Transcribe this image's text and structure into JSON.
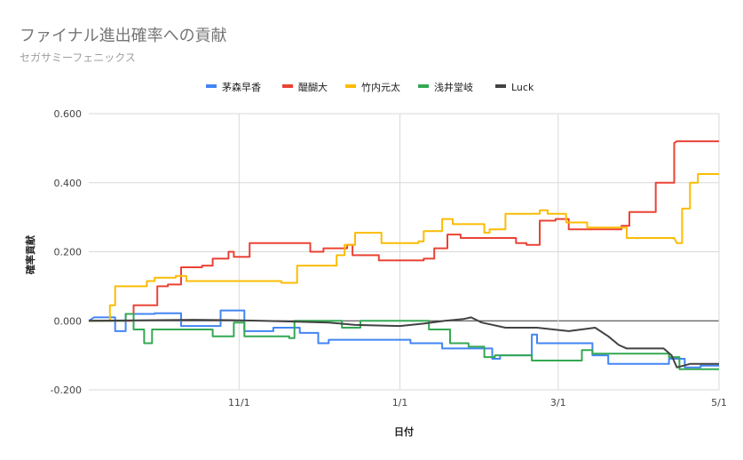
{
  "chart_data": {
    "type": "line",
    "title": "ファイナル進出確率への貢献",
    "subtitle": "セガサミーフェニックス",
    "xlabel": "日付",
    "ylabel": "確率貢献",
    "ylim": [
      -0.2,
      0.6
    ],
    "yticks": [
      "-0.200",
      "0.000",
      "0.200",
      "0.400",
      "0.600"
    ],
    "xlim": [
      "2023-09-05",
      "2024-05-01"
    ],
    "xticks": [
      {
        "date": "2023-11-01",
        "label": "11/1"
      },
      {
        "date": "2024-01-01",
        "label": "1/1"
      },
      {
        "date": "2024-03-01",
        "label": "3/1"
      },
      {
        "date": "2024-05-01",
        "label": "5/1"
      }
    ],
    "grid": true,
    "legend": "top",
    "series": [
      {
        "name": "茅森早香",
        "color": "#4285f4",
        "points": [
          [
            "2023-09-05",
            0.0
          ],
          [
            "2023-09-07",
            0.01
          ],
          [
            "2023-09-15",
            0.01
          ],
          [
            "2023-09-15",
            -0.03
          ],
          [
            "2023-09-19",
            -0.03
          ],
          [
            "2023-09-19",
            0.02
          ],
          [
            "2023-09-30",
            0.02
          ],
          [
            "2023-09-30",
            0.022
          ],
          [
            "2023-10-10",
            0.022
          ],
          [
            "2023-10-10",
            -0.015
          ],
          [
            "2023-10-25",
            -0.015
          ],
          [
            "2023-10-25",
            0.03
          ],
          [
            "2023-11-03",
            0.03
          ],
          [
            "2023-11-03",
            -0.03
          ],
          [
            "2023-11-14",
            -0.03
          ],
          [
            "2023-11-14",
            -0.02
          ],
          [
            "2023-11-24",
            -0.02
          ],
          [
            "2023-11-24",
            -0.035
          ],
          [
            "2023-12-01",
            -0.035
          ],
          [
            "2023-12-01",
            -0.065
          ],
          [
            "2023-12-05",
            -0.065
          ],
          [
            "2023-12-05",
            -0.055
          ],
          [
            "2024-01-05",
            -0.055
          ],
          [
            "2024-01-05",
            -0.065
          ],
          [
            "2024-01-17",
            -0.065
          ],
          [
            "2024-01-17",
            -0.08
          ],
          [
            "2024-02-05",
            -0.08
          ],
          [
            "2024-02-05",
            -0.11
          ],
          [
            "2024-02-08",
            -0.11
          ],
          [
            "2024-02-08",
            -0.1
          ],
          [
            "2024-02-20",
            -0.1
          ],
          [
            "2024-02-20",
            -0.04
          ],
          [
            "2024-02-22",
            -0.04
          ],
          [
            "2024-02-22",
            -0.065
          ],
          [
            "2024-03-14",
            -0.065
          ],
          [
            "2024-03-14",
            -0.1
          ],
          [
            "2024-03-20",
            -0.1
          ],
          [
            "2024-03-20",
            -0.125
          ],
          [
            "2024-04-12",
            -0.125
          ],
          [
            "2024-04-12",
            -0.11
          ],
          [
            "2024-04-18",
            -0.11
          ],
          [
            "2024-04-18",
            -0.135
          ],
          [
            "2024-04-24",
            -0.135
          ],
          [
            "2024-04-24",
            -0.13
          ],
          [
            "2024-05-01",
            -0.13
          ]
        ]
      },
      {
        "name": "醍醐大",
        "color": "#ea4335",
        "points": [
          [
            "2023-09-05",
            0.0
          ],
          [
            "2023-09-22",
            0.0
          ],
          [
            "2023-09-22",
            0.045
          ],
          [
            "2023-10-01",
            0.045
          ],
          [
            "2023-10-01",
            0.1
          ],
          [
            "2023-10-05",
            0.1
          ],
          [
            "2023-10-05",
            0.105
          ],
          [
            "2023-10-10",
            0.105
          ],
          [
            "2023-10-10",
            0.155
          ],
          [
            "2023-10-18",
            0.155
          ],
          [
            "2023-10-18",
            0.16
          ],
          [
            "2023-10-22",
            0.16
          ],
          [
            "2023-10-22",
            0.18
          ],
          [
            "2023-10-28",
            0.18
          ],
          [
            "2023-10-28",
            0.2
          ],
          [
            "2023-10-30",
            0.2
          ],
          [
            "2023-10-30",
            0.185
          ],
          [
            "2023-11-05",
            0.185
          ],
          [
            "2023-11-05",
            0.225
          ],
          [
            "2023-11-28",
            0.225
          ],
          [
            "2023-11-28",
            0.2
          ],
          [
            "2023-12-03",
            0.2
          ],
          [
            "2023-12-03",
            0.21
          ],
          [
            "2023-12-12",
            0.21
          ],
          [
            "2023-12-12",
            0.22
          ],
          [
            "2023-12-14",
            0.22
          ],
          [
            "2023-12-14",
            0.19
          ],
          [
            "2023-12-24",
            0.19
          ],
          [
            "2023-12-24",
            0.175
          ],
          [
            "2024-01-10",
            0.175
          ],
          [
            "2024-01-10",
            0.18
          ],
          [
            "2024-01-14",
            0.18
          ],
          [
            "2024-01-14",
            0.21
          ],
          [
            "2024-01-19",
            0.21
          ],
          [
            "2024-01-19",
            0.25
          ],
          [
            "2024-01-24",
            0.25
          ],
          [
            "2024-01-24",
            0.24
          ],
          [
            "2024-02-14",
            0.24
          ],
          [
            "2024-02-14",
            0.225
          ],
          [
            "2024-02-18",
            0.225
          ],
          [
            "2024-02-18",
            0.22
          ],
          [
            "2024-02-23",
            0.22
          ],
          [
            "2024-02-23",
            0.29
          ],
          [
            "2024-02-29",
            0.29
          ],
          [
            "2024-02-29",
            0.295
          ],
          [
            "2024-03-05",
            0.295
          ],
          [
            "2024-03-05",
            0.265
          ],
          [
            "2024-03-25",
            0.265
          ],
          [
            "2024-03-25",
            0.275
          ],
          [
            "2024-03-28",
            0.275
          ],
          [
            "2024-03-28",
            0.315
          ],
          [
            "2024-04-07",
            0.315
          ],
          [
            "2024-04-07",
            0.4
          ],
          [
            "2024-04-14",
            0.4
          ],
          [
            "2024-04-14",
            0.515
          ],
          [
            "2024-04-15",
            0.52
          ],
          [
            "2024-05-01",
            0.52
          ]
        ]
      },
      {
        "name": "竹内元太",
        "color": "#fbbc04",
        "points": [
          [
            "2023-09-05",
            0.0
          ],
          [
            "2023-09-13",
            0.0
          ],
          [
            "2023-09-13",
            0.045
          ],
          [
            "2023-09-15",
            0.045
          ],
          [
            "2023-09-15",
            0.1
          ],
          [
            "2023-09-27",
            0.1
          ],
          [
            "2023-09-27",
            0.115
          ],
          [
            "2023-09-30",
            0.115
          ],
          [
            "2023-09-30",
            0.125
          ],
          [
            "2023-10-08",
            0.125
          ],
          [
            "2023-10-08",
            0.13
          ],
          [
            "2023-10-12",
            0.13
          ],
          [
            "2023-10-12",
            0.115
          ],
          [
            "2023-11-17",
            0.115
          ],
          [
            "2023-11-17",
            0.11
          ],
          [
            "2023-11-23",
            0.11
          ],
          [
            "2023-11-23",
            0.16
          ],
          [
            "2023-12-08",
            0.16
          ],
          [
            "2023-12-08",
            0.19
          ],
          [
            "2023-12-11",
            0.19
          ],
          [
            "2023-12-11",
            0.22
          ],
          [
            "2023-12-15",
            0.22
          ],
          [
            "2023-12-15",
            0.255
          ],
          [
            "2023-12-25",
            0.255
          ],
          [
            "2023-12-25",
            0.225
          ],
          [
            "2024-01-08",
            0.225
          ],
          [
            "2024-01-08",
            0.23
          ],
          [
            "2024-01-10",
            0.23
          ],
          [
            "2024-01-10",
            0.26
          ],
          [
            "2024-01-17",
            0.26
          ],
          [
            "2024-01-17",
            0.295
          ],
          [
            "2024-01-21",
            0.295
          ],
          [
            "2024-01-21",
            0.28
          ],
          [
            "2024-02-02",
            0.28
          ],
          [
            "2024-02-02",
            0.255
          ],
          [
            "2024-02-04",
            0.255
          ],
          [
            "2024-02-04",
            0.265
          ],
          [
            "2024-02-10",
            0.265
          ],
          [
            "2024-02-10",
            0.31
          ],
          [
            "2024-02-23",
            0.31
          ],
          [
            "2024-02-23",
            0.32
          ],
          [
            "2024-02-26",
            0.32
          ],
          [
            "2024-02-26",
            0.31
          ],
          [
            "2024-03-04",
            0.31
          ],
          [
            "2024-03-04",
            0.285
          ],
          [
            "2024-03-12",
            0.285
          ],
          [
            "2024-03-12",
            0.27
          ],
          [
            "2024-03-27",
            0.27
          ],
          [
            "2024-03-27",
            0.24
          ],
          [
            "2024-04-14",
            0.24
          ],
          [
            "2024-04-15",
            0.225
          ],
          [
            "2024-04-17",
            0.225
          ],
          [
            "2024-04-17",
            0.325
          ],
          [
            "2024-04-20",
            0.325
          ],
          [
            "2024-04-20",
            0.4
          ],
          [
            "2024-04-23",
            0.4
          ],
          [
            "2024-04-23",
            0.425
          ],
          [
            "2024-05-01",
            0.425
          ]
        ]
      },
      {
        "name": "浅井堂岐",
        "color": "#34a853",
        "points": [
          [
            "2023-09-05",
            0.0
          ],
          [
            "2023-09-19",
            0.0
          ],
          [
            "2023-09-19",
            0.02
          ],
          [
            "2023-09-22",
            0.02
          ],
          [
            "2023-09-22",
            -0.025
          ],
          [
            "2023-09-26",
            -0.025
          ],
          [
            "2023-09-26",
            -0.065
          ],
          [
            "2023-09-29",
            -0.065
          ],
          [
            "2023-09-29",
            -0.025
          ],
          [
            "2023-10-22",
            -0.025
          ],
          [
            "2023-10-22",
            -0.045
          ],
          [
            "2023-10-30",
            -0.045
          ],
          [
            "2023-10-30",
            -0.005
          ],
          [
            "2023-11-03",
            -0.005
          ],
          [
            "2023-11-03",
            -0.045
          ],
          [
            "2023-11-20",
            -0.045
          ],
          [
            "2023-11-20",
            -0.05
          ],
          [
            "2023-11-22",
            -0.05
          ],
          [
            "2023-11-22",
            0.0
          ],
          [
            "2023-12-10",
            0.0
          ],
          [
            "2023-12-10",
            -0.02
          ],
          [
            "2023-12-17",
            -0.02
          ],
          [
            "2023-12-17",
            0.0
          ],
          [
            "2024-01-12",
            0.0
          ],
          [
            "2024-01-12",
            -0.025
          ],
          [
            "2024-01-20",
            -0.025
          ],
          [
            "2024-01-20",
            -0.065
          ],
          [
            "2024-01-27",
            -0.065
          ],
          [
            "2024-01-27",
            -0.075
          ],
          [
            "2024-02-02",
            -0.075
          ],
          [
            "2024-02-02",
            -0.105
          ],
          [
            "2024-02-06",
            -0.105
          ],
          [
            "2024-02-06",
            -0.1
          ],
          [
            "2024-02-20",
            -0.1
          ],
          [
            "2024-02-20",
            -0.115
          ],
          [
            "2024-03-10",
            -0.115
          ],
          [
            "2024-03-10",
            -0.085
          ],
          [
            "2024-03-14",
            -0.085
          ],
          [
            "2024-03-14",
            -0.095
          ],
          [
            "2024-04-12",
            -0.095
          ],
          [
            "2024-04-12",
            -0.105
          ],
          [
            "2024-04-16",
            -0.105
          ],
          [
            "2024-04-16",
            -0.14
          ],
          [
            "2024-05-01",
            -0.14
          ]
        ]
      },
      {
        "name": "Luck",
        "color": "#424242",
        "points": [
          [
            "2023-09-05",
            0.0
          ],
          [
            "2023-10-15",
            0.003
          ],
          [
            "2023-10-28",
            0.002
          ],
          [
            "2023-11-10",
            0.0
          ],
          [
            "2023-11-20",
            -0.002
          ],
          [
            "2023-12-05",
            -0.005
          ],
          [
            "2023-12-15",
            -0.012
          ],
          [
            "2024-01-01",
            -0.015
          ],
          [
            "2024-01-10",
            -0.008
          ],
          [
            "2024-01-18",
            0.0
          ],
          [
            "2024-01-25",
            0.005
          ],
          [
            "2024-01-28",
            0.01
          ],
          [
            "2024-02-01",
            -0.005
          ],
          [
            "2024-02-10",
            -0.02
          ],
          [
            "2024-02-22",
            -0.02
          ],
          [
            "2024-03-05",
            -0.03
          ],
          [
            "2024-03-15",
            -0.02
          ],
          [
            "2024-03-20",
            -0.045
          ],
          [
            "2024-03-24",
            -0.07
          ],
          [
            "2024-03-27",
            -0.08
          ],
          [
            "2024-04-10",
            -0.08
          ],
          [
            "2024-04-13",
            -0.1
          ],
          [
            "2024-04-15",
            -0.135
          ],
          [
            "2024-04-20",
            -0.125
          ],
          [
            "2024-05-01",
            -0.125
          ]
        ]
      }
    ]
  }
}
